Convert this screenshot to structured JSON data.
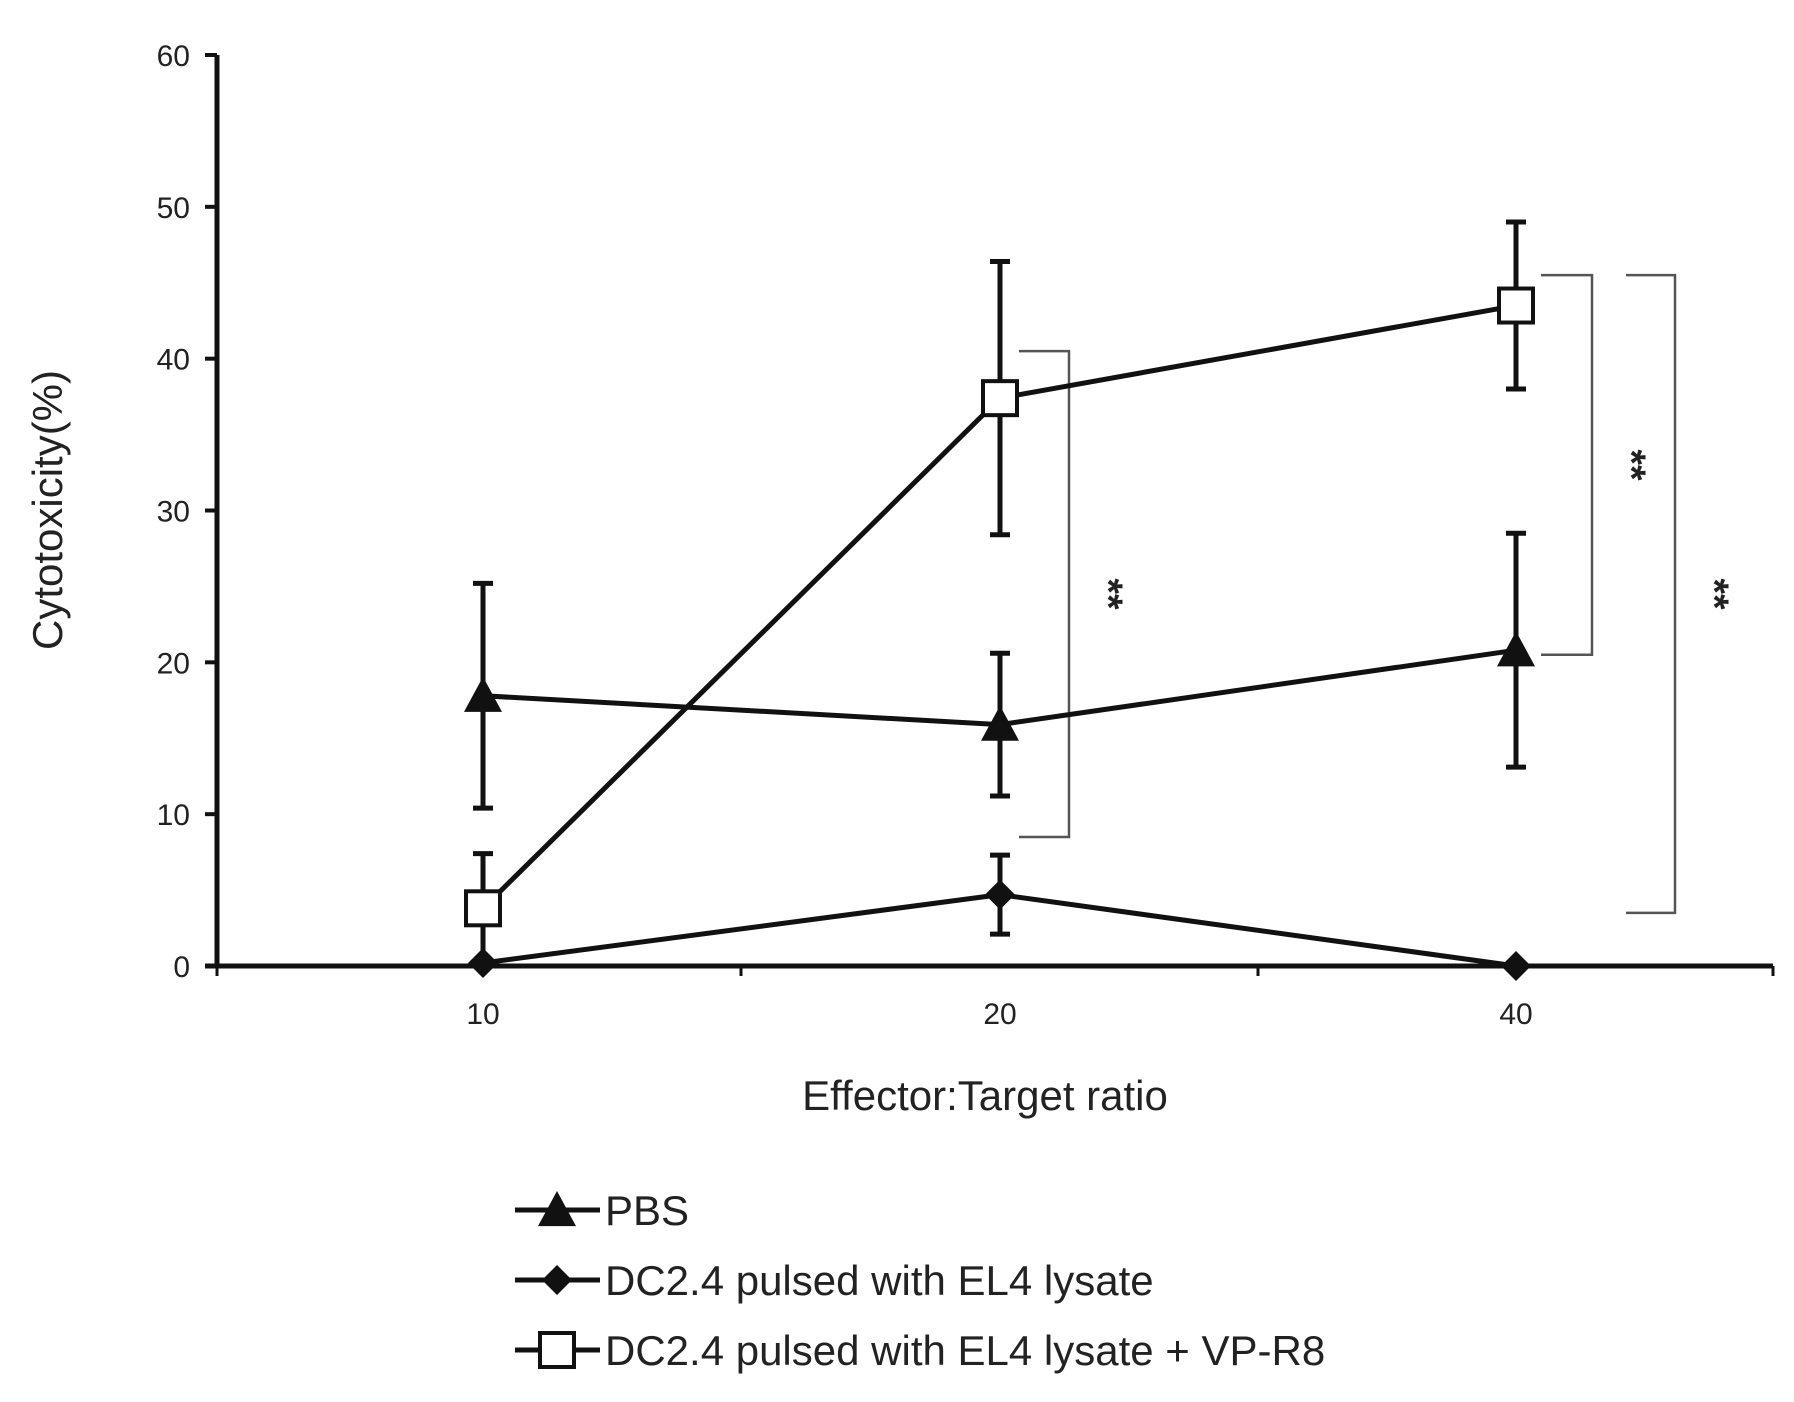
{
  "chart_data": {
    "type": "line",
    "title": "",
    "xlabel": "Effector:Target ratio",
    "ylabel": "Cytotoxicity(%)",
    "ylim": [
      0,
      60
    ],
    "yticks": [
      "0",
      "10",
      "20",
      "30",
      "40",
      "50",
      "60"
    ],
    "categories": [
      "10",
      "20",
      "40"
    ],
    "grid": false,
    "legend_position": "bottom",
    "series": [
      {
        "name": "PBS",
        "marker": "triangle",
        "values": [
          17.8,
          15.9,
          20.8
        ],
        "error": [
          7.4,
          4.7,
          7.7
        ]
      },
      {
        "name": "DC2.4 pulsed with EL4 lysate",
        "marker": "diamond",
        "values": [
          0.2,
          4.7,
          0.0
        ],
        "error": [
          0.0,
          2.6,
          0.0
        ]
      },
      {
        "name": "DC2.4 pulsed with EL4 lysate + VP-R8",
        "marker": "open-square",
        "values": [
          3.8,
          37.4,
          43.5
        ],
        "error": [
          3.6,
          9.0,
          5.5
        ]
      }
    ],
    "significance": [
      {
        "label": "**",
        "category": "20",
        "from": 8.5,
        "to": 40.5
      },
      {
        "label": "**",
        "category": "40",
        "from": 20.5,
        "to": 45.5
      },
      {
        "label": "**",
        "category": "40",
        "from": 3.5,
        "to": 45.5
      }
    ]
  }
}
